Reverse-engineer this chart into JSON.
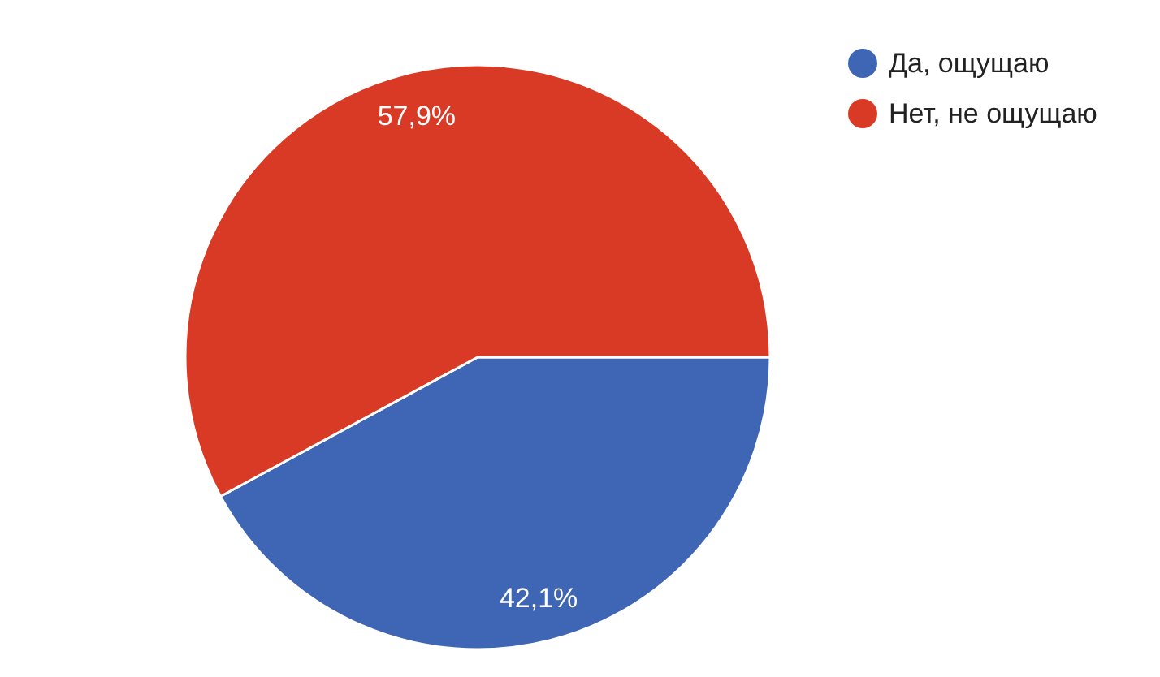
{
  "chart_data": {
    "type": "pie",
    "categories": [
      "Да, ощущаю",
      "Нет, не ощущаю"
    ],
    "values": [
      42.1,
      57.9
    ],
    "colors": [
      "#3e66b4",
      "#d83a26"
    ],
    "value_labels": [
      "42,1%",
      "57,9%"
    ],
    "legend": "top right"
  }
}
